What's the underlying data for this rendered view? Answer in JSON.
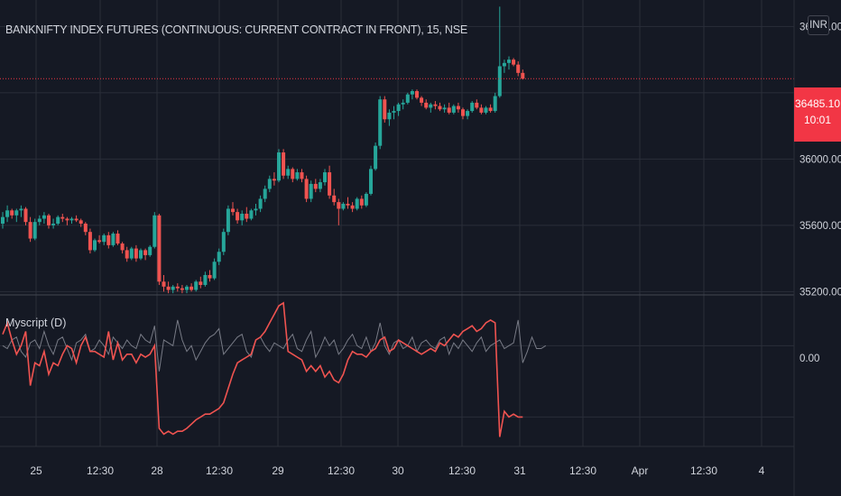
{
  "header": {
    "symbol_title": "BANKNIFTY INDEX FUTURES (CONTINUOUS: CURRENT CONTRACT IN FRONT), 15, NSE",
    "currency_label": "INR"
  },
  "price_tag": {
    "price": "36485.10",
    "countdown": "10:01"
  },
  "indicator": {
    "title": "Myscript (D)",
    "zero_label": "0.00"
  },
  "colors": {
    "background": "#151924",
    "grid": "#2a2e39",
    "up": "#26a69a",
    "down": "#ef5350",
    "last_price": "#f23645",
    "indicator_main": "#ef5350",
    "indicator_secondary": "#787b86"
  },
  "chart_data": [
    {
      "type": "candlestick",
      "title": "BANKNIFTY INDEX FUTURES (CONTINUOUS: CURRENT CONTRACT IN FRONT), 15, NSE",
      "y_axis": {
        "ticks": [
          35200,
          35600,
          36000,
          36800
        ],
        "tick_labels": [
          "35200.00",
          "35600.00",
          "36000.00",
          "36800.00"
        ],
        "range": [
          35180,
          36960
        ],
        "side": "right"
      },
      "x_axis": {
        "tick_labels": [
          "25",
          "12:30",
          "28",
          "12:30",
          "29",
          "12:30",
          "30",
          "12:30",
          "31",
          "12:30",
          "Apr",
          "12:30",
          "4"
        ]
      },
      "last_price": 36485.1,
      "grid": true,
      "candles_ohlc": [
        [
          35610,
          35680,
          35580,
          35650
        ],
        [
          35650,
          35720,
          35620,
          35690
        ],
        [
          35690,
          35700,
          35640,
          35660
        ],
        [
          35660,
          35700,
          35620,
          35690
        ],
        [
          35690,
          35720,
          35650,
          35700
        ],
        [
          35700,
          35710,
          35600,
          35620
        ],
        [
          35620,
          35650,
          35500,
          35520
        ],
        [
          35520,
          35640,
          35510,
          35620
        ],
        [
          35620,
          35660,
          35600,
          35640
        ],
        [
          35640,
          35680,
          35610,
          35660
        ],
        [
          35660,
          35670,
          35580,
          35600
        ],
        [
          35600,
          35640,
          35580,
          35610
        ],
        [
          35610,
          35660,
          35600,
          35650
        ],
        [
          35650,
          35670,
          35620,
          35640
        ],
        [
          35640,
          35650,
          35600,
          35630
        ],
        [
          35630,
          35650,
          35610,
          35640
        ],
        [
          35640,
          35660,
          35620,
          35630
        ],
        [
          35630,
          35640,
          35590,
          35610
        ],
        [
          35610,
          35620,
          35540,
          35560
        ],
        [
          35560,
          35580,
          35430,
          35450
        ],
        [
          35450,
          35520,
          35440,
          35510
        ],
        [
          35510,
          35540,
          35490,
          35500
        ],
        [
          35500,
          35550,
          35480,
          35540
        ],
        [
          35540,
          35560,
          35460,
          35480
        ],
        [
          35480,
          35560,
          35470,
          35550
        ],
        [
          35550,
          35570,
          35480,
          35490
        ],
        [
          35490,
          35500,
          35430,
          35450
        ],
        [
          35450,
          35470,
          35380,
          35400
        ],
        [
          35400,
          35470,
          35390,
          35460
        ],
        [
          35460,
          35480,
          35380,
          35400
        ],
        [
          35400,
          35460,
          35390,
          35450
        ],
        [
          35450,
          35460,
          35390,
          35420
        ],
        [
          35420,
          35480,
          35410,
          35470
        ],
        [
          35470,
          35680,
          35460,
          35660
        ],
        [
          35660,
          35670,
          35240,
          35260
        ],
        [
          35260,
          35300,
          35200,
          35230
        ],
        [
          35230,
          35260,
          35190,
          35210
        ],
        [
          35210,
          35240,
          35190,
          35230
        ],
        [
          35230,
          35250,
          35200,
          35220
        ],
        [
          35220,
          35240,
          35190,
          35210
        ],
        [
          35210,
          35240,
          35190,
          35230
        ],
        [
          35230,
          35250,
          35200,
          35210
        ],
        [
          35210,
          35270,
          35200,
          35260
        ],
        [
          35260,
          35290,
          35220,
          35240
        ],
        [
          35240,
          35320,
          35230,
          35300
        ],
        [
          35300,
          35330,
          35260,
          35280
        ],
        [
          35280,
          35400,
          35270,
          35380
        ],
        [
          35380,
          35460,
          35360,
          35440
        ],
        [
          35440,
          35580,
          35420,
          35560
        ],
        [
          35560,
          35720,
          35540,
          35700
        ],
        [
          35700,
          35740,
          35660,
          35680
        ],
        [
          35680,
          35700,
          35610,
          35630
        ],
        [
          35630,
          35690,
          35600,
          35670
        ],
        [
          35670,
          35710,
          35620,
          35640
        ],
        [
          35640,
          35700,
          35630,
          35690
        ],
        [
          35690,
          35730,
          35660,
          35700
        ],
        [
          35700,
          35780,
          35680,
          35760
        ],
        [
          35760,
          35840,
          35740,
          35820
        ],
        [
          35820,
          35900,
          35800,
          35880
        ],
        [
          35880,
          35920,
          35840,
          35870
        ],
        [
          35870,
          36060,
          35860,
          36040
        ],
        [
          36040,
          36060,
          35880,
          35900
        ],
        [
          35900,
          35960,
          35880,
          35940
        ],
        [
          35940,
          35950,
          35860,
          35880
        ],
        [
          35880,
          35940,
          35870,
          35920
        ],
        [
          35920,
          35940,
          35860,
          35880
        ],
        [
          35880,
          35900,
          35740,
          35760
        ],
        [
          35760,
          35870,
          35740,
          35850
        ],
        [
          35850,
          35880,
          35800,
          35820
        ],
        [
          35820,
          35880,
          35800,
          35860
        ],
        [
          35860,
          35940,
          35840,
          35920
        ],
        [
          35920,
          35960,
          35760,
          35780
        ],
        [
          35780,
          35820,
          35720,
          35740
        ],
        [
          35740,
          35760,
          35600,
          35700
        ],
        [
          35700,
          35740,
          35690,
          35730
        ],
        [
          35730,
          35770,
          35700,
          35720
        ],
        [
          35720,
          35740,
          35680,
          35700
        ],
        [
          35700,
          35770,
          35690,
          35760
        ],
        [
          35760,
          35780,
          35700,
          35720
        ],
        [
          35720,
          35800,
          35710,
          35790
        ],
        [
          35790,
          35960,
          35780,
          35940
        ],
        [
          35940,
          36100,
          35930,
          36080
        ],
        [
          36080,
          36380,
          36060,
          36360
        ],
        [
          36360,
          36380,
          36220,
          36240
        ],
        [
          36240,
          36300,
          36200,
          36280
        ],
        [
          36280,
          36320,
          36240,
          36290
        ],
        [
          36290,
          36340,
          36260,
          36330
        ],
        [
          36330,
          36360,
          36300,
          36340
        ],
        [
          36340,
          36400,
          36330,
          36390
        ],
        [
          36390,
          36420,
          36360,
          36410
        ],
        [
          36410,
          36420,
          36360,
          36370
        ],
        [
          36370,
          36380,
          36320,
          36340
        ],
        [
          36340,
          36360,
          36300,
          36310
        ],
        [
          36310,
          36340,
          36280,
          36330
        ],
        [
          36330,
          36350,
          36300,
          36320
        ],
        [
          36320,
          36340,
          36290,
          36300
        ],
        [
          36300,
          36330,
          36280,
          36310
        ],
        [
          36310,
          36340,
          36270,
          36280
        ],
        [
          36280,
          36330,
          36270,
          36320
        ],
        [
          36320,
          36340,
          36280,
          36300
        ],
        [
          36300,
          36310,
          36240,
          36260
        ],
        [
          36260,
          36300,
          36240,
          36290
        ],
        [
          36290,
          36350,
          36280,
          36340
        ],
        [
          36340,
          36360,
          36300,
          36310
        ],
        [
          36310,
          36330,
          36270,
          36280
        ],
        [
          36280,
          36320,
          36270,
          36310
        ],
        [
          36310,
          36330,
          36280,
          36290
        ],
        [
          36290,
          36400,
          36280,
          36380
        ],
        [
          36380,
          36920,
          36370,
          36560
        ],
        [
          36560,
          36600,
          36520,
          36580
        ],
        [
          36580,
          36620,
          36540,
          36600
        ],
        [
          36600,
          36610,
          36560,
          36570
        ],
        [
          36570,
          36590,
          36500,
          36520
        ],
        [
          36520,
          36540,
          36480,
          36485
        ]
      ]
    },
    {
      "type": "line",
      "title": "Myscript (D)",
      "y_axis": {
        "ticks": [
          0
        ],
        "tick_labels": [
          "0.00"
        ],
        "range": [
          -70,
          35
        ]
      },
      "grid": true,
      "series": [
        {
          "color": "#ef5350",
          "values": [
            8,
            16,
            4,
            -6,
            0,
            10,
            -28,
            -12,
            -14,
            -4,
            -20,
            -12,
            -14,
            -6,
            0,
            -2,
            -12,
            0,
            6,
            -4,
            -4,
            -6,
            -8,
            10,
            -10,
            2,
            -10,
            -6,
            -6,
            -12,
            -6,
            -8,
            -6,
            0,
            -58,
            -62,
            -60,
            -62,
            -60,
            -60,
            -58,
            -55,
            -52,
            -50,
            -48,
            -48,
            -46,
            -44,
            -40,
            -30,
            -20,
            -12,
            -10,
            -8,
            -6,
            4,
            6,
            10,
            16,
            22,
            28,
            30,
            -4,
            -6,
            -8,
            -10,
            -18,
            -14,
            -18,
            -14,
            -22,
            -18,
            -24,
            -26,
            -20,
            -10,
            -4,
            -6,
            -6,
            -8,
            -4,
            -2,
            4,
            6,
            -4,
            -2,
            4,
            2,
            0,
            -2,
            -4,
            -6,
            -4,
            -2,
            -4,
            2,
            0,
            4,
            8,
            6,
            10,
            12,
            14,
            10,
            12,
            16,
            18,
            16,
            -64,
            -46,
            -50,
            -48,
            -50,
            -50
          ]
        },
        {
          "color": "#787b86",
          "values": [
            0,
            -2,
            4,
            6,
            -4,
            -8,
            2,
            4,
            -2,
            10,
            0,
            -6,
            4,
            6,
            -2,
            -10,
            2,
            4,
            8,
            -4,
            -2,
            4,
            0,
            -6,
            6,
            2,
            -2,
            4,
            0,
            -2,
            8,
            4,
            2,
            14,
            -18,
            4,
            2,
            0,
            18,
            4,
            -4,
            0,
            -10,
            -4,
            2,
            6,
            8,
            12,
            -6,
            -2,
            2,
            6,
            8,
            -4,
            -8,
            4,
            6,
            0,
            -4,
            2,
            0,
            -2,
            4,
            8,
            -2,
            -4,
            4,
            10,
            -8,
            -2,
            6,
            0,
            4,
            -6,
            -2,
            4,
            8,
            0,
            -2,
            6,
            -4,
            2,
            16,
            0,
            -6,
            2,
            4,
            -2,
            0,
            6,
            -4,
            2,
            4,
            0,
            -2,
            4,
            6,
            -6,
            2,
            -2,
            4,
            0,
            -4,
            2,
            6,
            -4,
            0,
            2,
            4,
            -2,
            0,
            2,
            18,
            -12,
            -4,
            6,
            -2,
            -2,
            0
          ]
        }
      ]
    }
  ]
}
